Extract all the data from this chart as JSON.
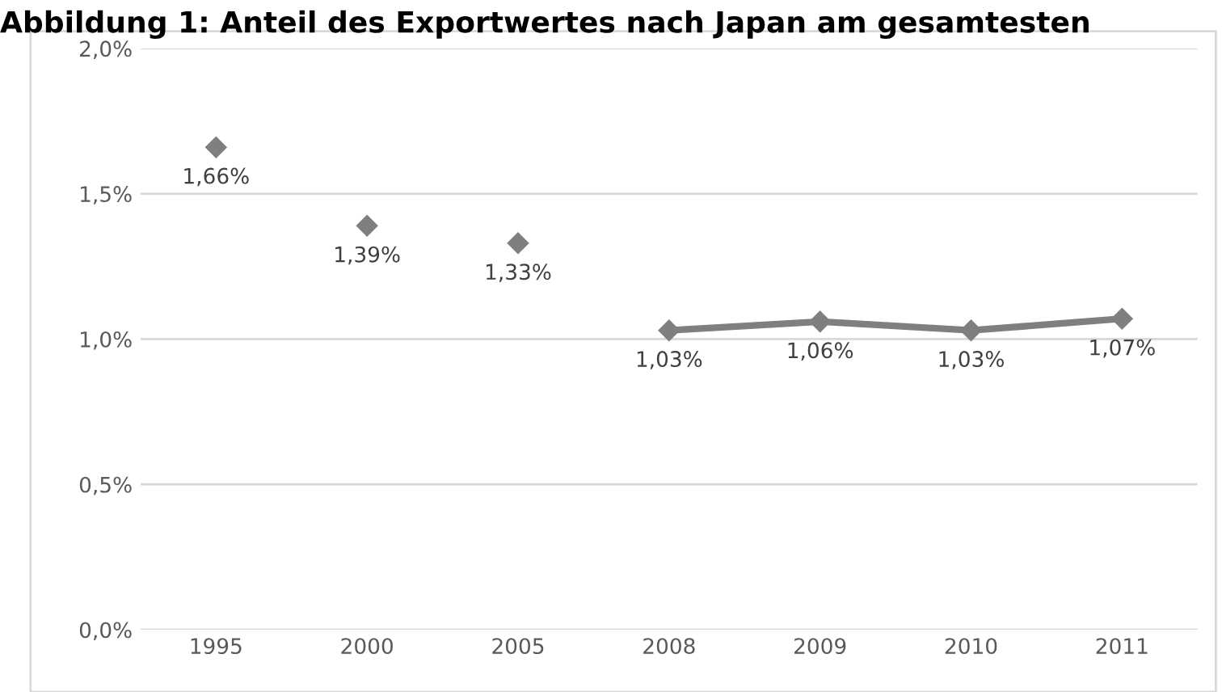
{
  "chart_data": {
    "type": "line",
    "title": "Abbildung 1: Anteil des Exportwertes nach Japan am gesamtesten",
    "categories": [
      "1995",
      "2000",
      "2005",
      "2008",
      "2009",
      "2010",
      "2011"
    ],
    "series": [
      {
        "type": "scatter",
        "color": "#7f7f7f",
        "values": [
          1.66,
          1.39,
          1.33,
          null,
          null,
          null,
          null
        ],
        "value_labels": [
          "1,66%",
          "1,39%",
          "1,33%",
          null,
          null,
          null,
          null
        ]
      },
      {
        "color": "#7f7f7f",
        "values": [
          null,
          null,
          null,
          1.03,
          1.06,
          1.03,
          1.07
        ],
        "value_labels": [
          null,
          null,
          null,
          "1,03%",
          "1,06%",
          "1,03%",
          "1,07%"
        ]
      }
    ],
    "ylim": [
      0,
      2.0
    ],
    "yticks": [
      {
        "value": 0,
        "label": "0,0%"
      },
      {
        "value": 0.5,
        "label": "0,5%"
      },
      {
        "value": 1.0,
        "label": "1,0%"
      },
      {
        "value": 1.5,
        "label": "1,5%"
      },
      {
        "value": 2.0,
        "label": "2,0%"
      }
    ],
    "grid": "y",
    "marker": "diamond",
    "legend": false
  }
}
